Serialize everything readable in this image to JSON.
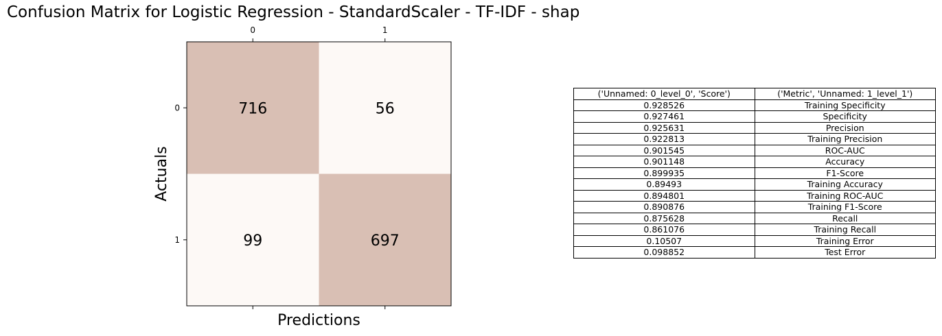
{
  "colors": {
    "high": "#d9bfb4",
    "low": "#fdf9f6"
  },
  "chart_data": {
    "type": "heatmap",
    "title": "Confusion Matrix for Logistic Regression - StandardScaler - TF-IDF - shap",
    "xlabel": "Predictions",
    "ylabel": "Actuals",
    "x_ticks": [
      "0",
      "1"
    ],
    "y_ticks": [
      "0",
      "1"
    ],
    "matrix": [
      [
        716,
        56
      ],
      [
        99,
        697
      ]
    ]
  },
  "table": {
    "headers": [
      "('Unnamed: 0_level_0', 'Score')",
      "('Metric', 'Unnamed: 1_level_1')"
    ],
    "rows": [
      [
        "0.928526",
        "Training Specificity"
      ],
      [
        "0.927461",
        "Specificity"
      ],
      [
        "0.925631",
        "Precision"
      ],
      [
        "0.922813",
        "Training Precision"
      ],
      [
        "0.901545",
        "ROC-AUC"
      ],
      [
        "0.901148",
        "Accuracy"
      ],
      [
        "0.899935",
        "F1-Score"
      ],
      [
        "0.89493",
        "Training Accuracy"
      ],
      [
        "0.894801",
        "Training ROC-AUC"
      ],
      [
        "0.890876",
        "Training F1-Score"
      ],
      [
        "0.875628",
        "Recall"
      ],
      [
        "0.861076",
        "Training Recall"
      ],
      [
        "0.10507",
        "Training Error"
      ],
      [
        "0.098852",
        "Test Error"
      ]
    ]
  }
}
